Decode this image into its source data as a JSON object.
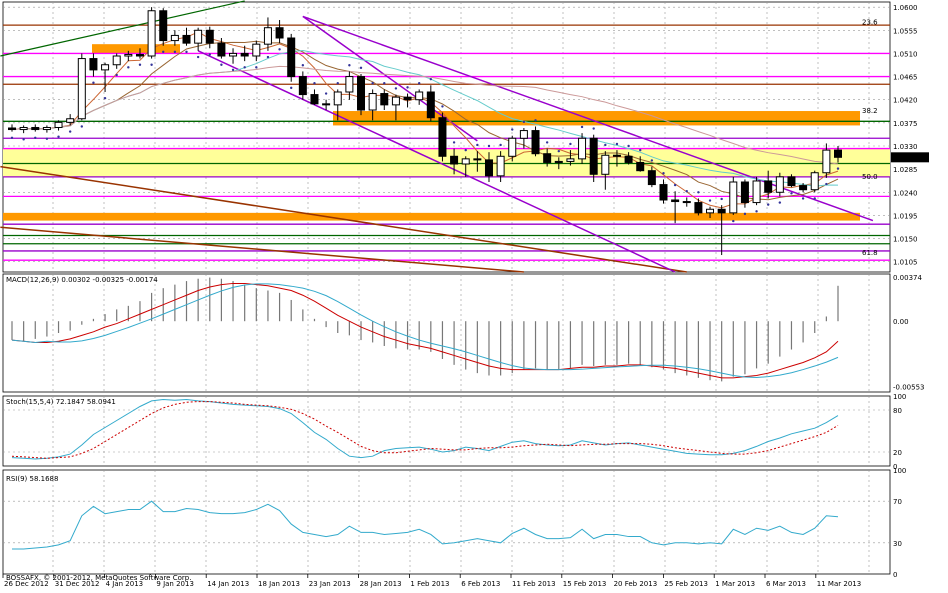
{
  "chart_data": [
    {
      "type": "candlestick",
      "title": "",
      "y_ticks": [
        "1.0600",
        "1.0555",
        "1.0510",
        "1.0465",
        "1.0420",
        "1.0375",
        "1.0330",
        "1.0285",
        "1.0240",
        "1.0195",
        "1.0150",
        "1.0105"
      ],
      "ylim": [
        1.0085,
        1.061
      ],
      "current_price_label": "1.0308",
      "current_price": 1.0308,
      "fib_labels": [
        {
          "text": "23.6",
          "price": 1.0562
        },
        {
          "text": "38.2",
          "price": 1.039
        },
        {
          "text": "50.0",
          "price": 1.0262
        },
        {
          "text": "61.8",
          "price": 1.0114
        }
      ],
      "candles": [
        {
          "o": 1.0365,
          "h": 1.0372,
          "l": 1.0358,
          "c": 1.0362
        },
        {
          "o": 1.0362,
          "h": 1.037,
          "l": 1.0355,
          "c": 1.0366
        },
        {
          "o": 1.0366,
          "h": 1.0372,
          "l": 1.0358,
          "c": 1.0362
        },
        {
          "o": 1.0362,
          "h": 1.037,
          "l": 1.0356,
          "c": 1.0366
        },
        {
          "o": 1.0366,
          "h": 1.038,
          "l": 1.036,
          "c": 1.0376
        },
        {
          "o": 1.0376,
          "h": 1.0392,
          "l": 1.037,
          "c": 1.0383
        },
        {
          "o": 1.0383,
          "h": 1.051,
          "l": 1.038,
          "c": 1.05
        },
        {
          "o": 1.05,
          "h": 1.051,
          "l": 1.0465,
          "c": 1.0478
        },
        {
          "o": 1.0478,
          "h": 1.0492,
          "l": 1.0435,
          "c": 1.0488
        },
        {
          "o": 1.0488,
          "h": 1.051,
          "l": 1.048,
          "c": 1.0505
        },
        {
          "o": 1.0505,
          "h": 1.0515,
          "l": 1.0495,
          "c": 1.0508
        },
        {
          "o": 1.0508,
          "h": 1.052,
          "l": 1.05,
          "c": 1.0505
        },
        {
          "o": 1.0505,
          "h": 1.06,
          "l": 1.05,
          "c": 1.0593
        },
        {
          "o": 1.0593,
          "h": 1.0598,
          "l": 1.0525,
          "c": 1.0535
        },
        {
          "o": 1.0535,
          "h": 1.0555,
          "l": 1.0525,
          "c": 1.0545
        },
        {
          "o": 1.0545,
          "h": 1.056,
          "l": 1.0525,
          "c": 1.053
        },
        {
          "o": 1.053,
          "h": 1.056,
          "l": 1.0515,
          "c": 1.0555
        },
        {
          "o": 1.0555,
          "h": 1.0562,
          "l": 1.052,
          "c": 1.053
        },
        {
          "o": 1.053,
          "h": 1.054,
          "l": 1.05,
          "c": 1.0505
        },
        {
          "o": 1.0505,
          "h": 1.052,
          "l": 1.049,
          "c": 1.051
        },
        {
          "o": 1.051,
          "h": 1.0525,
          "l": 1.0495,
          "c": 1.0505
        },
        {
          "o": 1.0505,
          "h": 1.0535,
          "l": 1.0495,
          "c": 1.0528
        },
        {
          "o": 1.0528,
          "h": 1.058,
          "l": 1.0515,
          "c": 1.056
        },
        {
          "o": 1.056,
          "h": 1.0575,
          "l": 1.053,
          "c": 1.054
        },
        {
          "o": 1.054,
          "h": 1.0548,
          "l": 1.0455,
          "c": 1.0465
        },
        {
          "o": 1.0465,
          "h": 1.0475,
          "l": 1.042,
          "c": 1.043
        },
        {
          "o": 1.043,
          "h": 1.044,
          "l": 1.041,
          "c": 1.0412
        },
        {
          "o": 1.0412,
          "h": 1.042,
          "l": 1.04,
          "c": 1.041
        },
        {
          "o": 1.041,
          "h": 1.044,
          "l": 1.038,
          "c": 1.0435
        },
        {
          "o": 1.0435,
          "h": 1.0475,
          "l": 1.042,
          "c": 1.0465
        },
        {
          "o": 1.0465,
          "h": 1.047,
          "l": 1.039,
          "c": 1.04
        },
        {
          "o": 1.04,
          "h": 1.044,
          "l": 1.038,
          "c": 1.0432
        },
        {
          "o": 1.0432,
          "h": 1.044,
          "l": 1.04,
          "c": 1.041
        },
        {
          "o": 1.041,
          "h": 1.043,
          "l": 1.038,
          "c": 1.0425
        },
        {
          "o": 1.0425,
          "h": 1.0432,
          "l": 1.0405,
          "c": 1.042
        },
        {
          "o": 1.042,
          "h": 1.044,
          "l": 1.041,
          "c": 1.0435
        },
        {
          "o": 1.0435,
          "h": 1.0448,
          "l": 1.0378,
          "c": 1.0385
        },
        {
          "o": 1.0385,
          "h": 1.0395,
          "l": 1.03,
          "c": 1.031
        },
        {
          "o": 1.031,
          "h": 1.0325,
          "l": 1.0275,
          "c": 1.0295
        },
        {
          "o": 1.0295,
          "h": 1.031,
          "l": 1.027,
          "c": 1.0305
        },
        {
          "o": 1.0305,
          "h": 1.032,
          "l": 1.028,
          "c": 1.0303
        },
        {
          "o": 1.0303,
          "h": 1.0318,
          "l": 1.026,
          "c": 1.0272
        },
        {
          "o": 1.0272,
          "h": 1.032,
          "l": 1.026,
          "c": 1.031
        },
        {
          "o": 1.031,
          "h": 1.035,
          "l": 1.03,
          "c": 1.0345
        },
        {
          "o": 1.0345,
          "h": 1.0365,
          "l": 1.0325,
          "c": 1.036
        },
        {
          "o": 1.036,
          "h": 1.0368,
          "l": 1.031,
          "c": 1.0315
        },
        {
          "o": 1.0315,
          "h": 1.0325,
          "l": 1.029,
          "c": 1.0298
        },
        {
          "o": 1.0298,
          "h": 1.0308,
          "l": 1.0285,
          "c": 1.03
        },
        {
          "o": 1.03,
          "h": 1.0322,
          "l": 1.0292,
          "c": 1.0305
        },
        {
          "o": 1.0305,
          "h": 1.0355,
          "l": 1.0295,
          "c": 1.0345
        },
        {
          "o": 1.0345,
          "h": 1.0352,
          "l": 1.026,
          "c": 1.0275
        },
        {
          "o": 1.0275,
          "h": 1.032,
          "l": 1.0245,
          "c": 1.0312
        },
        {
          "o": 1.0312,
          "h": 1.0322,
          "l": 1.029,
          "c": 1.031
        },
        {
          "o": 1.031,
          "h": 1.0318,
          "l": 1.0294,
          "c": 1.0298
        },
        {
          "o": 1.0298,
          "h": 1.031,
          "l": 1.028,
          "c": 1.0282
        },
        {
          "o": 1.0282,
          "h": 1.029,
          "l": 1.025,
          "c": 1.0255
        },
        {
          "o": 1.0255,
          "h": 1.0265,
          "l": 1.0218,
          "c": 1.0225
        },
        {
          "o": 1.0225,
          "h": 1.0242,
          "l": 1.018,
          "c": 1.0222
        },
        {
          "o": 1.0222,
          "h": 1.023,
          "l": 1.0212,
          "c": 1.022
        },
        {
          "o": 1.022,
          "h": 1.0228,
          "l": 1.0195,
          "c": 1.02
        },
        {
          "o": 1.02,
          "h": 1.0212,
          "l": 1.019,
          "c": 1.0207
        },
        {
          "o": 1.0207,
          "h": 1.0215,
          "l": 1.0118,
          "c": 1.02
        },
        {
          "o": 1.02,
          "h": 1.027,
          "l": 1.0196,
          "c": 1.026
        },
        {
          "o": 1.026,
          "h": 1.0265,
          "l": 1.021,
          "c": 1.022
        },
        {
          "o": 1.022,
          "h": 1.027,
          "l": 1.0215,
          "c": 1.0262
        },
        {
          "o": 1.0262,
          "h": 1.0282,
          "l": 1.0228,
          "c": 1.024
        },
        {
          "o": 1.024,
          "h": 1.0278,
          "l": 1.0232,
          "c": 1.027
        },
        {
          "o": 1.027,
          "h": 1.0275,
          "l": 1.025,
          "c": 1.0253
        },
        {
          "o": 1.0253,
          "h": 1.0258,
          "l": 1.024,
          "c": 1.0245
        },
        {
          "o": 1.0245,
          "h": 1.0282,
          "l": 1.024,
          "c": 1.0278
        },
        {
          "o": 1.0278,
          "h": 1.0335,
          "l": 1.0268,
          "c": 1.0322
        },
        {
          "o": 1.0322,
          "h": 1.033,
          "l": 1.0298,
          "c": 1.0308
        }
      ]
    },
    {
      "type": "line",
      "title": "MACD(12,26,9) 0.00302 -0.00325 -0.00174",
      "y_ticks": [
        "0.00374",
        "0.00",
        "-0.00553"
      ],
      "ylim": [
        -0.006,
        0.004
      ],
      "series": [
        {
          "name": "MACD histogram",
          "values": [
            -0.0016,
            -0.0017,
            -0.0015,
            -0.0013,
            -0.001,
            -0.0008,
            -0.0003,
            0.0002,
            0.0006,
            0.001,
            0.0013,
            0.0017,
            0.0024,
            0.0028,
            0.0031,
            0.0034,
            0.0036,
            0.0037,
            0.0036,
            0.0034,
            0.0031,
            0.0028,
            0.0026,
            0.0024,
            0.0018,
            0.001,
            0.0002,
            -0.0005,
            -0.001,
            -0.0012,
            -0.0016,
            -0.0018,
            -0.0021,
            -0.0023,
            -0.0024,
            -0.0024,
            -0.0026,
            -0.0032,
            -0.0037,
            -0.0041,
            -0.0044,
            -0.0046,
            -0.0046,
            -0.0044,
            -0.0041,
            -0.004,
            -0.0041,
            -0.0041,
            -0.004,
            -0.0037,
            -0.0038,
            -0.0037,
            -0.0037,
            -0.0036,
            -0.0037,
            -0.0039,
            -0.0041,
            -0.0044,
            -0.0046,
            -0.0048,
            -0.005,
            -0.0051,
            -0.0047,
            -0.0045,
            -0.004,
            -0.0036,
            -0.003,
            -0.0024,
            -0.0018,
            -0.001,
            0.0004,
            0.003
          ]
        },
        {
          "name": "Signal",
          "values": [
            -0.0016,
            -0.0017,
            -0.0018,
            -0.0018,
            -0.0017,
            -0.0015,
            -0.0012,
            -0.0009,
            -0.0005,
            -0.0002,
            0.0002,
            0.0006,
            0.001,
            0.0014,
            0.0018,
            0.0022,
            0.0026,
            0.0029,
            0.0031,
            0.0032,
            0.0032,
            0.0031,
            0.003,
            0.0028,
            0.0026,
            0.0022,
            0.0017,
            0.0011,
            0.0005,
            0.0,
            -0.0005,
            -0.0009,
            -0.0013,
            -0.0016,
            -0.0019,
            -0.0021,
            -0.0023,
            -0.0026,
            -0.0029,
            -0.0032,
            -0.0035,
            -0.0038,
            -0.004,
            -0.0041,
            -0.0041,
            -0.0041,
            -0.0041,
            -0.0041,
            -0.004,
            -0.0039,
            -0.0039,
            -0.0038,
            -0.0038,
            -0.0037,
            -0.0037,
            -0.0038,
            -0.0039,
            -0.004,
            -0.0042,
            -0.0044,
            -0.0046,
            -0.0048,
            -0.0048,
            -0.0047,
            -0.0046,
            -0.0044,
            -0.0041,
            -0.0038,
            -0.0035,
            -0.0031,
            -0.0026,
            -0.0017
          ]
        }
      ]
    },
    {
      "type": "line",
      "title": "Stoch(15,5,4) 72.1847 58.0941",
      "y_ticks": [
        "100",
        "80",
        "20",
        "0"
      ],
      "ylim": [
        0,
        100
      ],
      "series": [
        {
          "name": "%K",
          "values": [
            12,
            11,
            10,
            11,
            13,
            17,
            30,
            45,
            55,
            65,
            75,
            85,
            93,
            95,
            94,
            95,
            93,
            92,
            90,
            88,
            87,
            86,
            85,
            82,
            75,
            62,
            48,
            38,
            25,
            14,
            12,
            14,
            22,
            25,
            26,
            27,
            24,
            20,
            22,
            27,
            25,
            22,
            28,
            34,
            36,
            32,
            30,
            29,
            30,
            36,
            33,
            30,
            32,
            33,
            30,
            27,
            24,
            21,
            18,
            17,
            16,
            16,
            18,
            22,
            28,
            35,
            40,
            46,
            50,
            54,
            62,
            72
          ]
        },
        {
          "name": "%D",
          "values": [
            14,
            13,
            12,
            11,
            12,
            13,
            18,
            25,
            35,
            45,
            55,
            65,
            75,
            83,
            88,
            91,
            92,
            92,
            91,
            90,
            88,
            87,
            86,
            84,
            81,
            75,
            67,
            57,
            48,
            38,
            28,
            22,
            19,
            19,
            21,
            23,
            25,
            24,
            23,
            23,
            25,
            26,
            26,
            27,
            29,
            30,
            31,
            30,
            29,
            30,
            31,
            31,
            32,
            32,
            32,
            31,
            29,
            26,
            24,
            22,
            20,
            18,
            17,
            17,
            19,
            22,
            27,
            32,
            37,
            42,
            48,
            58
          ]
        }
      ]
    },
    {
      "type": "line",
      "title": "RSI(9) 58.1688",
      "y_ticks": [
        "100",
        "70",
        "30",
        "0"
      ],
      "ylim": [
        0,
        100
      ],
      "series": [
        {
          "name": "RSI",
          "values": [
            24,
            24,
            25,
            26,
            28,
            32,
            56,
            65,
            58,
            60,
            62,
            62,
            70,
            60,
            60,
            63,
            62,
            59,
            58,
            58,
            59,
            62,
            67,
            61,
            48,
            40,
            38,
            36,
            38,
            46,
            40,
            40,
            38,
            39,
            40,
            43,
            38,
            29,
            30,
            32,
            34,
            32,
            30,
            39,
            44,
            38,
            34,
            34,
            35,
            43,
            34,
            38,
            38,
            36,
            36,
            30,
            28,
            30,
            30,
            29,
            30,
            29,
            43,
            38,
            44,
            42,
            46,
            40,
            38,
            44,
            56,
            55
          ]
        }
      ]
    }
  ],
  "date_labels": [
    "26 Dec 2012",
    "31 Dec 2012",
    "4 Jan 2013",
    "9 Jan 2013",
    "14 Jan 2013",
    "18 Jan 2013",
    "23 Jan 2013",
    "28 Jan 2013",
    "1 Feb 2013",
    "6 Feb 2013",
    "11 Feb 2013",
    "15 Feb 2013",
    "20 Feb 2013",
    "25 Feb 2013",
    "1 Mar 2013",
    "6 Mar 2013",
    "11 Mar 2013"
  ],
  "watermark": "BOSSAFX, © 2001-2012, MetaQuotes Software Corp.",
  "colors": {
    "bull_candle": "#ffffff",
    "bear_candle": "#000000",
    "orange_zone": "#ff9900",
    "yellow_zone": "#ffff99",
    "magenta_line": "#ff00ff",
    "purple_line": "#9900cc",
    "brown_line": "#993300",
    "green_line": "#006600",
    "macd_signal": "#cc0000",
    "stoch_main": "#33aacc",
    "rsi_line": "#33aacc"
  }
}
